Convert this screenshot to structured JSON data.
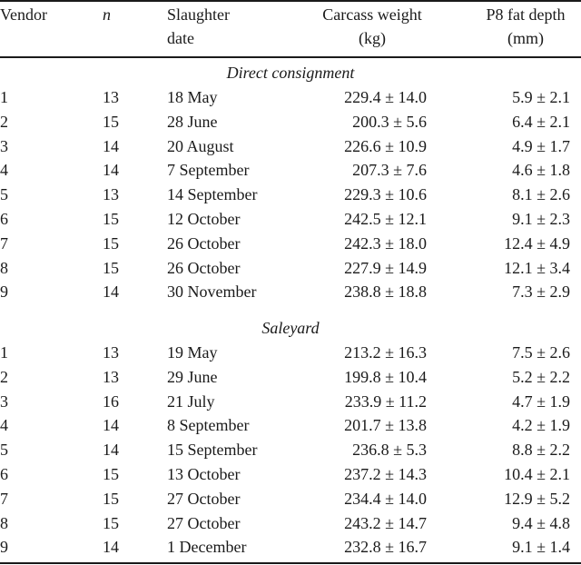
{
  "header": {
    "vendor": "Vendor",
    "n": "n",
    "date_line1": "Slaughter",
    "date_line2": "date",
    "carcass_line1": "Carcass weight",
    "carcass_line2": "(kg)",
    "fat_line1": "P8 fat depth",
    "fat_line2": "(mm)"
  },
  "sections": [
    {
      "title": "Direct consignment",
      "rows": [
        {
          "vendor": "1",
          "n": "13",
          "date": "18 May",
          "carcass": "229.4 ± 14.0",
          "fat": "5.9 ± 2.1"
        },
        {
          "vendor": "2",
          "n": "15",
          "date": "28 June",
          "carcass": "200.3 ± 5.6",
          "fat": "6.4 ± 2.1"
        },
        {
          "vendor": "3",
          "n": "14",
          "date": "20 August",
          "carcass": "226.6 ± 10.9",
          "fat": "4.9 ± 1.7"
        },
        {
          "vendor": "4",
          "n": "14",
          "date": "7 September",
          "carcass": "207.3 ± 7.6",
          "fat": "4.6 ± 1.8"
        },
        {
          "vendor": "5",
          "n": "13",
          "date": "14 September",
          "carcass": "229.3 ± 10.6",
          "fat": "8.1 ± 2.6"
        },
        {
          "vendor": "6",
          "n": "15",
          "date": "12 October",
          "carcass": "242.5 ± 12.1",
          "fat": "9.1 ± 2.3"
        },
        {
          "vendor": "7",
          "n": "15",
          "date": "26 October",
          "carcass": "242.3 ± 18.0",
          "fat": "12.4 ± 4.9"
        },
        {
          "vendor": "8",
          "n": "15",
          "date": "26 October",
          "carcass": "227.9 ± 14.9",
          "fat": "12.1 ± 3.4"
        },
        {
          "vendor": "9",
          "n": "14",
          "date": "30 November",
          "carcass": "238.8 ± 18.8",
          "fat": "7.3 ± 2.9"
        }
      ]
    },
    {
      "title": "Saleyard",
      "rows": [
        {
          "vendor": "1",
          "n": "13",
          "date": "19 May",
          "carcass": "213.2 ± 16.3",
          "fat": "7.5 ± 2.6"
        },
        {
          "vendor": "2",
          "n": "13",
          "date": "29 June",
          "carcass": "199.8 ± 10.4",
          "fat": "5.2 ± 2.2"
        },
        {
          "vendor": "3",
          "n": "16",
          "date": "21 July",
          "carcass": "233.9 ± 11.2",
          "fat": "4.7 ± 1.9"
        },
        {
          "vendor": "4",
          "n": "14",
          "date": "8 September",
          "carcass": "201.7 ± 13.8",
          "fat": "4.2 ± 1.9"
        },
        {
          "vendor": "5",
          "n": "14",
          "date": "15 September",
          "carcass": "236.8 ± 5.3",
          "fat": "8.8 ± 2.2"
        },
        {
          "vendor": "6",
          "n": "15",
          "date": "13 October",
          "carcass": "237.2 ± 14.3",
          "fat": "10.4 ± 2.1"
        },
        {
          "vendor": "7",
          "n": "15",
          "date": "27 October",
          "carcass": "234.4 ± 14.0",
          "fat": "12.9 ± 5.2"
        },
        {
          "vendor": "8",
          "n": "15",
          "date": "27 October",
          "carcass": "243.2 ± 14.7",
          "fat": "9.4 ± 4.8"
        },
        {
          "vendor": "9",
          "n": "14",
          "date": "1 December",
          "carcass": "232.8 ± 16.7",
          "fat": "9.1 ± 1.4"
        }
      ]
    }
  ]
}
